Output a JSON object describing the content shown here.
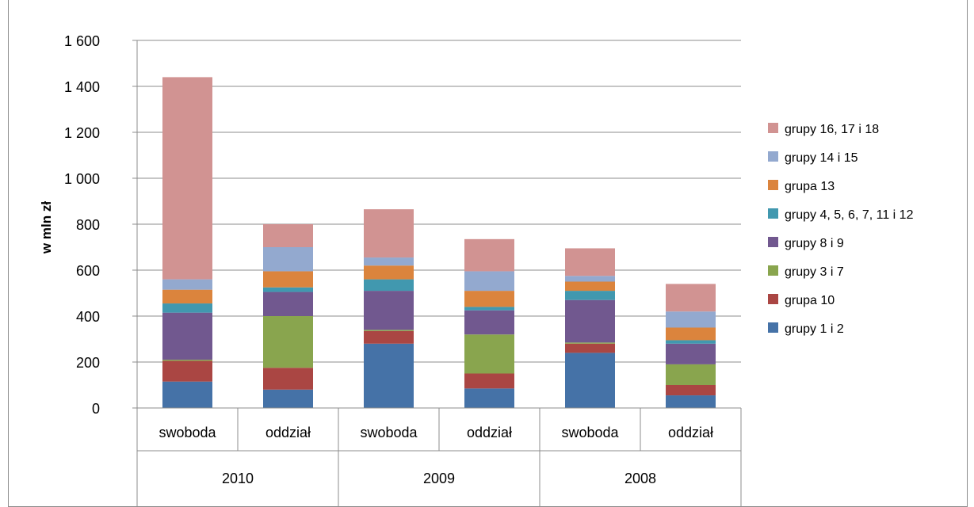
{
  "chart_data": {
    "type": "bar",
    "stacked": true,
    "ylabel": "w mln zł",
    "ylim": [
      0,
      1600
    ],
    "yticks": [
      0,
      200,
      400,
      600,
      800,
      1000,
      1200,
      1400,
      1600
    ],
    "ytick_labels": [
      "0",
      "200",
      "400",
      "600",
      "800",
      "1 000",
      "1 200",
      "1 400",
      "1 600"
    ],
    "grid": true,
    "legend_position": "right",
    "categories": [
      "swoboda",
      "oddział",
      "swoboda",
      "oddział",
      "swoboda",
      "oddział"
    ],
    "groups": [
      {
        "label": "2010",
        "span": [
          0,
          1
        ]
      },
      {
        "label": "2009",
        "span": [
          2,
          3
        ]
      },
      {
        "label": "2008",
        "span": [
          4,
          5
        ]
      }
    ],
    "series": [
      {
        "name": "grupy 1 i 2",
        "color": "#4572A7",
        "values": [
          115,
          80,
          280,
          85,
          240,
          55
        ]
      },
      {
        "name": "grupa 10",
        "color": "#AA4643",
        "values": [
          90,
          95,
          55,
          65,
          40,
          45
        ]
      },
      {
        "name": "grupy 3 i 7",
        "color": "#89A54E",
        "values": [
          5,
          225,
          5,
          170,
          5,
          90
        ]
      },
      {
        "name": "grupy 8 i 9",
        "color": "#71588F",
        "values": [
          205,
          105,
          170,
          105,
          185,
          90
        ]
      },
      {
        "name": "grupy 4, 5, 6, 7, 11 i 12",
        "color": "#4198AF",
        "values": [
          40,
          20,
          50,
          15,
          40,
          15
        ]
      },
      {
        "name": "grupa 13",
        "color": "#DB843D",
        "values": [
          60,
          70,
          60,
          70,
          40,
          55
        ]
      },
      {
        "name": "grupy 14 i 15",
        "color": "#93A9CF",
        "values": [
          45,
          105,
          35,
          85,
          25,
          70
        ]
      },
      {
        "name": "grupy 16, 17 i 18",
        "color": "#D19392",
        "values": [
          880,
          100,
          210,
          140,
          120,
          120
        ]
      }
    ]
  }
}
